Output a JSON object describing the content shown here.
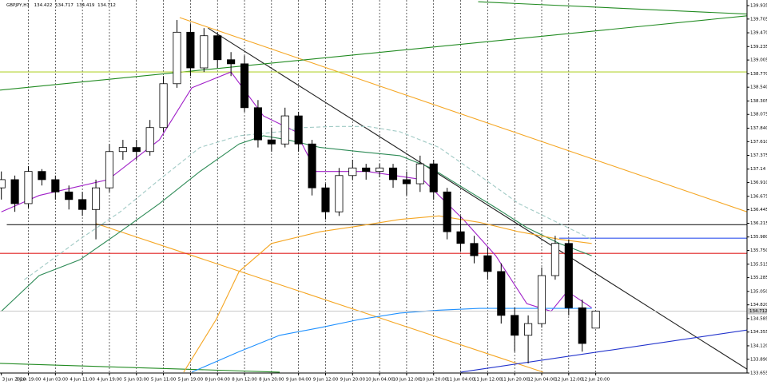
{
  "chart_data": {
    "type": "candlestick",
    "symbol": "GBPJPY,H1",
    "ylim": [
      133.655,
      139.935
    ],
    "yticks": [
      139.935,
      139.705,
      {
        "value": 139.47,
        "label": "139.470"
      },
      139.235,
      139.005,
      {
        "value": 138.77,
        "label": "138.770"
      },
      {
        "value": 138.54,
        "label": "138.540"
      },
      138.305,
      138.075,
      {
        "value": 137.84,
        "label": "137.840"
      },
      {
        "value": 137.61,
        "label": "137.610"
      },
      137.375,
      137.14,
      {
        "value": 136.91,
        "label": "136.910"
      },
      136.675,
      136.445,
      136.215,
      {
        "value": 135.98,
        "label": "135.980"
      },
      {
        "value": 135.75,
        "label": "135.750"
      },
      135.515,
      135.285,
      {
        "value": 135.05,
        "label": "135.050"
      },
      {
        "value": 134.82,
        "label": "134.820"
      },
      134.585,
      134.355,
      {
        "value": 134.12,
        "label": "134.120"
      },
      {
        "value": 133.89,
        "label": "133.890"
      },
      133.655
    ],
    "xlim": [
      -0.1,
      55.2
    ],
    "xticks": [
      {
        "value": 0,
        "label": "3 Jun 2020"
      },
      {
        "value": 2,
        "label": "3 Jun 19:00"
      },
      {
        "value": 4,
        "label": "4 Jun 03:00"
      },
      {
        "value": 6,
        "label": "4 Jun 11:00"
      },
      {
        "value": 8,
        "label": "4 Jun 19:00"
      },
      {
        "value": 10,
        "label": "5 Jun 03:00"
      },
      {
        "value": 12,
        "label": "5 Jun 11:00"
      },
      {
        "value": 14,
        "label": "5 Jun 19:00"
      },
      {
        "value": 16,
        "label": "8 Jun 04:00"
      },
      {
        "value": 18,
        "label": "8 Jun 12:00"
      },
      {
        "value": 20,
        "label": "8 Jun 20:00"
      },
      {
        "value": 22,
        "label": "9 Jun 04:00"
      },
      {
        "value": 24,
        "label": "9 Jun 12:00"
      },
      {
        "value": 26,
        "label": "9 Jun 20:00"
      },
      {
        "value": 28,
        "label": "10 Jun 04:00"
      },
      {
        "value": 30,
        "label": "10 Jun 12:00"
      },
      {
        "value": 32,
        "label": "10 Jun 20:00"
      },
      {
        "value": 34,
        "label": "11 Jun 04:00"
      },
      {
        "value": 36,
        "label": "11 Jun 12:00"
      },
      {
        "value": 38,
        "label": "11 Jun 20:00"
      },
      {
        "value": 40,
        "label": "12 Jun 04:00"
      },
      {
        "value": 42,
        "label": "12 Jun 12:00"
      },
      {
        "value": 44,
        "label": "12 Jun 20:00"
      }
    ],
    "grid": true,
    "open": [
      136.82,
      136.96,
      136.55,
      137.1,
      136.96,
      136.75,
      136.62,
      136.45,
      136.82,
      137.44,
      137.51,
      137.44,
      137.85,
      138.6,
      139.48,
      138.87,
      139.42,
      139.01,
      138.94,
      138.19,
      137.64,
      137.57,
      138.05,
      137.57,
      136.82,
      136.41,
      137.03,
      137.16,
      137.1,
      137.16,
      136.96,
      136.89,
      137.23,
      136.75,
      136.07,
      135.87,
      135.66,
      135.39,
      134.64,
      134.3,
      134.5,
      135.32,
      135.87,
      134.77,
      134.422
    ],
    "high": [
      137.1,
      137.03,
      137.19,
      137.14,
      137.03,
      136.86,
      136.75,
      136.96,
      137.57,
      137.64,
      137.64,
      137.98,
      138.73,
      139.69,
      139.62,
      139.55,
      139.48,
      139.14,
      139.08,
      138.32,
      137.85,
      138.19,
      138.12,
      137.64,
      136.89,
      137.16,
      137.3,
      137.23,
      137.23,
      137.23,
      137.1,
      137.37,
      137.3,
      136.82,
      136.34,
      136.0,
      135.8,
      135.53,
      134.77,
      134.64,
      135.46,
      136.0,
      135.94,
      134.91,
      134.717
    ],
    "low": [
      136.62,
      136.41,
      136.48,
      136.86,
      136.62,
      136.45,
      136.34,
      135.94,
      136.75,
      137.3,
      137.3,
      137.37,
      137.78,
      138.53,
      138.73,
      138.8,
      138.87,
      138.73,
      138.12,
      137.51,
      137.44,
      137.51,
      137.44,
      136.69,
      136.28,
      136.34,
      136.96,
      136.96,
      137.0,
      136.82,
      136.69,
      136.75,
      136.62,
      135.94,
      135.73,
      135.53,
      135.25,
      134.5,
      134.02,
      133.82,
      134.43,
      135.25,
      134.64,
      134.02,
      134.419
    ],
    "close": [
      136.96,
      136.55,
      137.1,
      136.96,
      136.75,
      136.62,
      136.45,
      136.82,
      137.44,
      137.51,
      137.44,
      137.85,
      138.6,
      139.48,
      138.87,
      139.42,
      139.01,
      138.94,
      138.19,
      137.64,
      137.57,
      138.05,
      137.57,
      136.82,
      136.41,
      137.03,
      137.16,
      137.1,
      137.16,
      136.96,
      136.89,
      137.23,
      136.75,
      136.07,
      135.87,
      135.66,
      135.39,
      134.64,
      134.3,
      134.5,
      135.32,
      135.87,
      134.77,
      134.16,
      134.712
    ],
    "overlays": [
      {
        "color": "#a020c8",
        "dashed": false,
        "x": [
          0,
          2.8,
          7.9,
          11.7,
          14.1,
          17.0,
          19.4,
          21.8,
          23.3,
          27.1,
          31.2,
          34.2,
          36.6,
          38.9,
          40.7,
          41.9,
          43.7
        ],
        "values": [
          136.41,
          136.69,
          136.96,
          137.64,
          138.53,
          138.8,
          138.05,
          137.78,
          137.1,
          137.1,
          136.96,
          136.28,
          135.66,
          134.84,
          134.71,
          135.05,
          134.77
        ]
      },
      {
        "color": "#9fc9c4",
        "dashed": true,
        "x": [
          1.7,
          5.8,
          8.8,
          11.7,
          14.7,
          17.6,
          20.6,
          22.4,
          24.7,
          27.1,
          29.5,
          32.4,
          35.4,
          38.3,
          40.7,
          43.7
        ],
        "values": [
          135.25,
          135.94,
          136.41,
          136.96,
          137.51,
          137.71,
          137.78,
          137.85,
          137.87,
          137.87,
          137.78,
          137.51,
          137.03,
          136.55,
          136.28,
          135.94
        ]
      },
      {
        "color": "#2e8b57",
        "dashed": false,
        "x": [
          0,
          2.8,
          5.8,
          8.8,
          11.7,
          14.7,
          17.6,
          19.4,
          21.2,
          23.6,
          26.5,
          29.5,
          31.8,
          34.2,
          36.6,
          38.9,
          41.3,
          43.7
        ],
        "values": [
          134.71,
          135.32,
          135.59,
          136.07,
          136.55,
          137.1,
          137.57,
          137.71,
          137.64,
          137.51,
          137.44,
          137.37,
          137.16,
          136.82,
          136.48,
          136.14,
          135.87,
          135.66
        ]
      },
      {
        "color": "#f5a623",
        "dashed": false,
        "x": [
          13.5,
          15.9,
          17.6,
          20.0,
          23.6,
          26.5,
          29.5,
          32.4,
          35.4,
          38.3,
          41.3,
          43.7
        ],
        "values": [
          133.67,
          134.57,
          135.39,
          135.87,
          136.07,
          136.17,
          136.28,
          136.34,
          136.23,
          136.07,
          135.94,
          135.87
        ]
      },
      {
        "color": "#1e90ff",
        "dashed": false,
        "x": [
          14.1,
          17.6,
          20.6,
          23.6,
          26.5,
          29.5,
          32.4,
          35.4,
          38.3,
          41.3,
          43.7
        ],
        "values": [
          133.67,
          134.02,
          134.3,
          134.43,
          134.57,
          134.68,
          134.73,
          134.76,
          134.76,
          134.76,
          134.76
        ]
      }
    ],
    "lines": [
      {
        "color": "#222222",
        "x": [
          15.3,
          55.2
        ],
        "values": [
          139.55,
          133.72
        ]
      },
      {
        "color": "#f5a623",
        "x": [
          13.2,
          55.2
        ],
        "values": [
          139.73,
          136.41
        ]
      },
      {
        "color": "#f5a623",
        "x": [
          7.0,
          40.1
        ],
        "values": [
          136.21,
          133.67
        ]
      },
      {
        "color": "#228b22",
        "x": [
          35.3,
          55.2
        ],
        "values": [
          140.0,
          139.79
        ]
      },
      {
        "color": "#228b22",
        "x": [
          -0.1,
          55.2
        ],
        "values": [
          138.49,
          139.76
        ]
      },
      {
        "color": "#228b22",
        "x": [
          -0.1,
          20.6
        ],
        "values": [
          133.82,
          133.67
        ]
      },
      {
        "color": "#2233cc",
        "x": [
          34.0,
          55.2
        ],
        "values": [
          133.67,
          134.39
        ]
      },
      {
        "color": "#222222",
        "x": [
          0.4,
          55.2
        ],
        "values": [
          136.19,
          136.19
        ]
      },
      {
        "color": "#e02020",
        "x": [
          -0.1,
          55.2
        ],
        "values": [
          135.7,
          135.7
        ]
      },
      {
        "color": "#b5d334",
        "x": [
          -0.1,
          55.2
        ],
        "values": [
          138.8,
          138.8
        ]
      },
      {
        "color": "#3355ee",
        "x": [
          41.3,
          55.2
        ],
        "values": [
          135.96,
          135.96
        ]
      }
    ]
  }
}
